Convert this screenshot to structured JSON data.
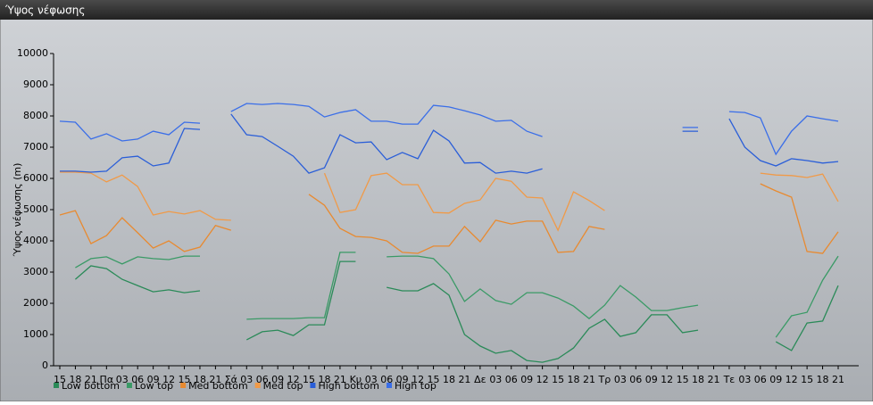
{
  "chart_data": {
    "type": "line",
    "title": "Ύψος νέφωσης",
    "y_label": "Ύψος νέφωσης (m)",
    "categories": [
      "15",
      "18",
      "21",
      "Πα",
      "03",
      "06",
      "09",
      "12",
      "15",
      "18",
      "21",
      "Σά",
      "03",
      "06",
      "09",
      "12",
      "15",
      "18",
      "21",
      "Κυ",
      "03",
      "06",
      "09",
      "12",
      "15",
      "18",
      "21",
      "Δε",
      "03",
      "06",
      "09",
      "12",
      "15",
      "18",
      "21",
      "Τρ",
      "03",
      "06",
      "09",
      "12",
      "15",
      "18",
      "21",
      "Τε",
      "03",
      "06",
      "09",
      "12",
      "15",
      "18",
      "21"
    ],
    "ylim": [
      0,
      10000
    ],
    "yticks": [
      0,
      1000,
      2000,
      3000,
      4000,
      5000,
      6000,
      7000,
      8000,
      9000,
      10000
    ],
    "series": [
      {
        "name": "Low bottom",
        "color": "#2a8a58",
        "values": [
          null,
          2770,
          3200,
          3110,
          2770,
          2570,
          2370,
          2430,
          2340,
          2400,
          null,
          null,
          830,
          1090,
          1140,
          970,
          1310,
          1310,
          3340,
          3340,
          null,
          2510,
          2400,
          2400,
          2630,
          2260,
          1000,
          630,
          400,
          490,
          170,
          110,
          230,
          570,
          1200,
          1490,
          940,
          1060,
          1630,
          1630,
          1060,
          1140,
          null,
          null,
          null,
          null,
          770,
          490,
          1370,
          1430,
          2570
        ]
      },
      {
        "name": "Low top",
        "color": "#3a9a66",
        "values": [
          null,
          3140,
          3430,
          3490,
          3260,
          3490,
          3430,
          3400,
          3510,
          3510,
          null,
          null,
          1490,
          1510,
          1510,
          1510,
          1540,
          1540,
          3630,
          3630,
          null,
          3490,
          3510,
          3510,
          3430,
          2940,
          2060,
          2460,
          2090,
          1970,
          2340,
          2340,
          2170,
          1910,
          1510,
          1940,
          2570,
          2200,
          1770,
          1770,
          1860,
          1940,
          null,
          null,
          null,
          null,
          910,
          1600,
          1710,
          2740,
          3510
        ]
      },
      {
        "name": "Med bottom",
        "color": "#e88a30",
        "values": [
          4830,
          4970,
          3910,
          4170,
          4740,
          4260,
          3770,
          4000,
          3660,
          3800,
          4490,
          4340,
          null,
          null,
          null,
          null,
          5490,
          5140,
          4400,
          4140,
          4110,
          4000,
          3630,
          3600,
          3830,
          3830,
          4460,
          3970,
          4660,
          4540,
          4630,
          4630,
          3630,
          3660,
          4460,
          4370,
          null,
          null,
          null,
          null,
          null,
          null,
          null,
          null,
          null,
          5830,
          5600,
          5400,
          3660,
          3600,
          4290
        ]
      },
      {
        "name": "Med top",
        "color": "#f09a48",
        "values": [
          6200,
          6200,
          6170,
          5890,
          6110,
          5740,
          4830,
          4940,
          4860,
          4970,
          4690,
          4660,
          null,
          null,
          null,
          null,
          null,
          6170,
          4910,
          5000,
          6090,
          6170,
          5800,
          5800,
          4910,
          4890,
          5200,
          5310,
          6000,
          5910,
          5400,
          5370,
          4340,
          5570,
          5290,
          4970,
          null,
          null,
          null,
          null,
          null,
          null,
          null,
          null,
          null,
          6170,
          6110,
          6090,
          6030,
          6140,
          5260
        ]
      },
      {
        "name": "High bottom",
        "color": "#2a5ed8",
        "values": [
          6230,
          6230,
          6200,
          6230,
          6660,
          6710,
          6400,
          6490,
          7600,
          7570,
          null,
          8060,
          7400,
          7340,
          7030,
          6710,
          6170,
          6340,
          7400,
          7140,
          7170,
          6600,
          6830,
          6630,
          7540,
          7200,
          6490,
          6510,
          6170,
          6230,
          6170,
          6310,
          null,
          null,
          null,
          null,
          null,
          null,
          null,
          null,
          7510,
          7510,
          null,
          7910,
          7000,
          6570,
          6400,
          6630,
          6570,
          6490,
          6540
        ]
      },
      {
        "name": "High top",
        "color": "#3a6ee8",
        "values": [
          7830,
          7800,
          7260,
          7430,
          7200,
          7260,
          7510,
          7400,
          7800,
          7770,
          null,
          8140,
          8400,
          8370,
          8400,
          8370,
          8310,
          7970,
          8110,
          8200,
          7830,
          7830,
          7740,
          7740,
          8340,
          8290,
          8170,
          8030,
          7830,
          7860,
          7510,
          7340,
          null,
          null,
          null,
          null,
          null,
          null,
          null,
          null,
          7630,
          7630,
          null,
          8140,
          8110,
          7940,
          6770,
          7510,
          8000,
          7910,
          7830
        ]
      }
    ]
  }
}
